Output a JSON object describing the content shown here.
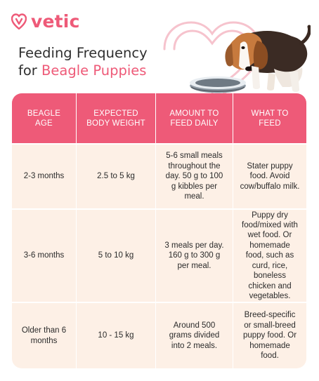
{
  "brand": {
    "name": "vetic",
    "logo_icon": "heart-v-logo-icon",
    "accent_color": "#ee5a78"
  },
  "title": {
    "line1": "Feeding Frequency",
    "line2_prefix": "for ",
    "line2_highlight": "Beagle Puppies"
  },
  "illustration": {
    "name": "beagle-puppy-eating-from-bowl"
  },
  "table": {
    "header_color": "#ee5a78",
    "body_color": "#fdf0e6",
    "columns": [
      "BEAGLE AGE",
      "EXPECTED BODY WEIGHT",
      "AMOUNT TO FEED DAILY",
      "WHAT TO FEED"
    ],
    "rows": [
      {
        "age": "2-3 months",
        "weight": "2.5 to 5 kg",
        "amount": "5-6 small meals throughout the day. 50 g to 100 g kibbles per meal.",
        "food": "Stater puppy food. Avoid cow/buffalo milk."
      },
      {
        "age": "3-6 months",
        "weight": "5 to 10 kg",
        "amount": "3 meals per day. 160 g to 300 g per meal.",
        "food": "Puppy dry food/mixed with wet food. Or homemade food, such as curd, rice, boneless chicken and vegetables."
      },
      {
        "age": "Older than 6 months",
        "weight": "10 - 15 kg",
        "amount": "Around 500 grams divided into 2 meals.",
        "food": "Breed-specific or small-breed puppy food. Or homemade food."
      }
    ]
  }
}
